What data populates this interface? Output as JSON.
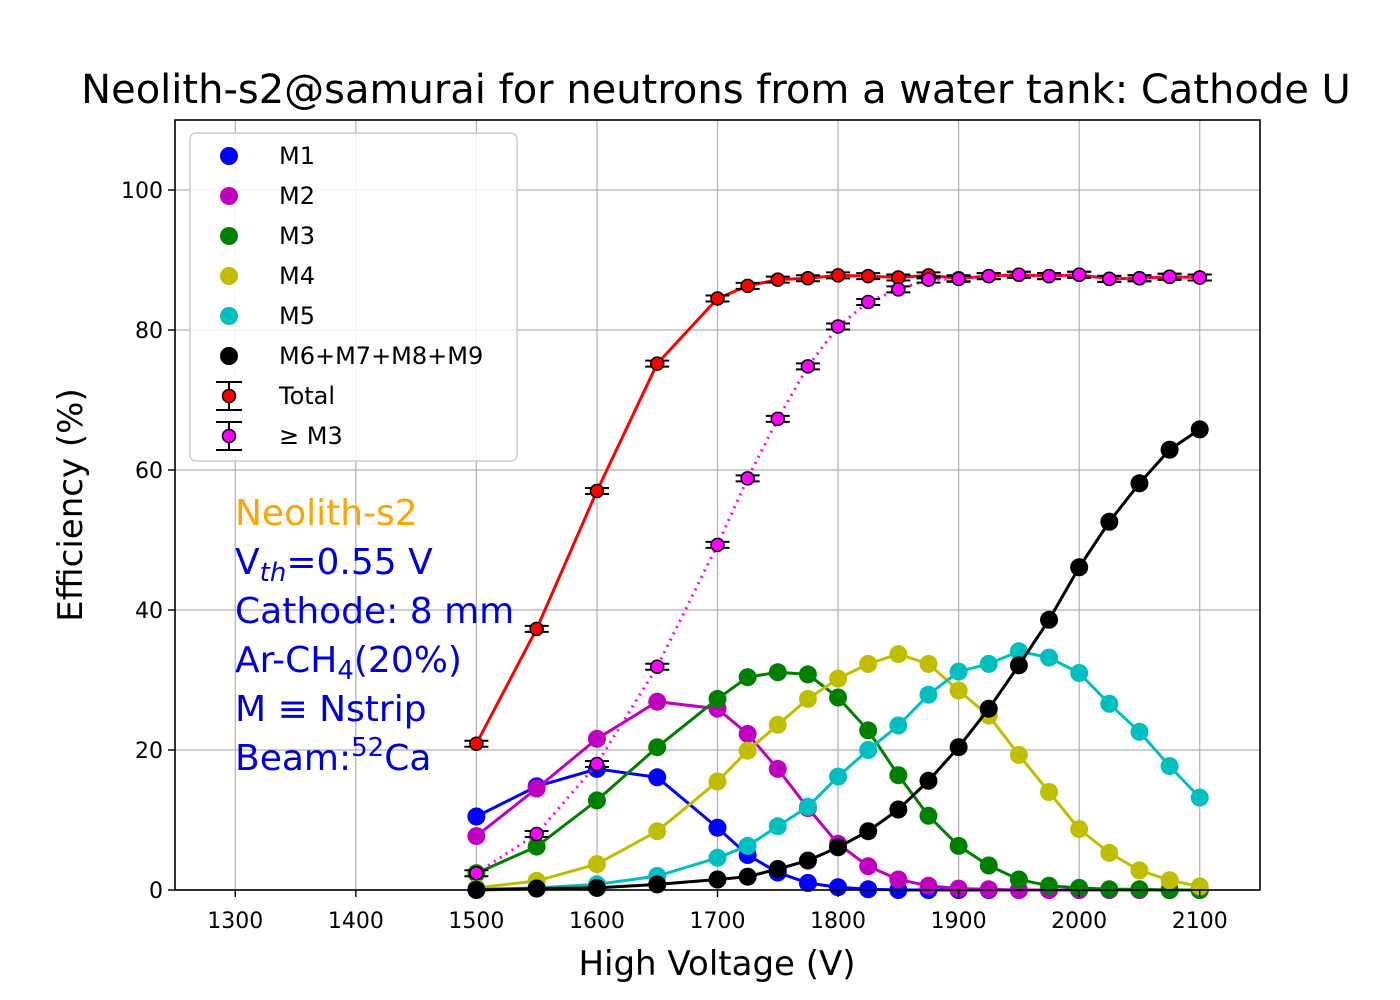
{
  "chart_data": {
    "type": "line",
    "title": "Neolith-s2@samurai for neutrons from a water tank: Cathode U",
    "xlabel": "High Voltage (V)",
    "ylabel": "Efficiency (%)",
    "xlim": [
      1250,
      2150
    ],
    "ylim": [
      0,
      110
    ],
    "xticks": [
      1300,
      1400,
      1500,
      1600,
      1700,
      1800,
      1900,
      2000,
      2100
    ],
    "yticks": [
      0,
      20,
      40,
      60,
      80,
      100
    ],
    "grid": true,
    "legend_position": "top-left",
    "x": [
      1500,
      1550,
      1600,
      1650,
      1700,
      1725,
      1750,
      1775,
      1800,
      1825,
      1850,
      1875,
      1900,
      1925,
      1950,
      1975,
      2000,
      2025,
      2050,
      2075,
      2100
    ],
    "series": [
      {
        "name": "M1",
        "color": "#0000ff",
        "line": "solid",
        "marker": "dot",
        "values": [
          10.5,
          14.8,
          17.3,
          16.1,
          8.9,
          5.0,
          2.5,
          1.0,
          0.4,
          0.1,
          0,
          0,
          0,
          0,
          0,
          0,
          0,
          0,
          0,
          0,
          0
        ]
      },
      {
        "name": "M2",
        "color": "#bf00bf",
        "line": "solid",
        "marker": "dot",
        "values": [
          7.7,
          14.5,
          21.6,
          26.9,
          25.9,
          22.3,
          17.3,
          11.7,
          6.6,
          3.4,
          1.5,
          0.6,
          0.2,
          0.1,
          0,
          0,
          0,
          0,
          0,
          0,
          0
        ]
      },
      {
        "name": "M3",
        "color": "#008000",
        "line": "solid",
        "marker": "dot",
        "values": [
          2.4,
          6.2,
          12.8,
          20.4,
          27.3,
          30.4,
          31.1,
          30.8,
          27.5,
          22.8,
          16.4,
          10.6,
          6.3,
          3.5,
          1.5,
          0.6,
          0.3,
          0.1,
          0.1,
          0,
          0
        ]
      },
      {
        "name": "M4",
        "color": "#bfbf00",
        "line": "solid",
        "marker": "dot",
        "values": [
          0.3,
          1.3,
          3.7,
          8.4,
          15.5,
          19.9,
          23.6,
          27.3,
          30.2,
          32.3,
          33.7,
          32.3,
          28.5,
          24.9,
          19.3,
          14.0,
          8.7,
          5.3,
          2.8,
          1.4,
          0.5
        ]
      },
      {
        "name": "M5",
        "color": "#00bfbf",
        "line": "solid",
        "marker": "dot",
        "values": [
          0.1,
          0.3,
          0.8,
          2.0,
          4.6,
          6.3,
          9.1,
          11.9,
          16.2,
          20.0,
          23.5,
          27.9,
          31.2,
          32.3,
          34.1,
          33.2,
          31.0,
          26.6,
          22.6,
          17.7,
          13.2
        ]
      },
      {
        "name": "M6+M7+M8+M9",
        "color": "#000000",
        "line": "solid",
        "marker": "dot",
        "values": [
          0,
          0.2,
          0.3,
          0.8,
          1.5,
          1.9,
          3.0,
          4.2,
          6.1,
          8.4,
          11.5,
          15.6,
          20.4,
          25.9,
          32.1,
          38.6,
          46.1,
          52.6,
          58.1,
          62.9,
          65.8
        ]
      },
      {
        "name": "Total",
        "color": "#ff0000",
        "line": "solid",
        "marker": "errorbar",
        "values": [
          20.9,
          37.3,
          57.0,
          75.2,
          84.5,
          86.3,
          87.2,
          87.4,
          87.8,
          87.7,
          87.5,
          87.8,
          87.4,
          87.7,
          87.9,
          87.7,
          87.9,
          87.3,
          87.4,
          87.6,
          87.5
        ]
      },
      {
        "name": " ≥ M3",
        "color": "#ff00ff",
        "line": "dotted",
        "marker": "errorbar",
        "values": [
          2.4,
          8.0,
          18.0,
          31.9,
          49.3,
          58.8,
          67.3,
          74.8,
          80.5,
          84.0,
          85.8,
          87.2,
          87.3,
          87.7,
          87.9,
          87.7,
          87.9,
          87.3,
          87.4,
          87.6,
          87.5
        ]
      }
    ],
    "annotations": {
      "detector": "Neolith-s2",
      "detector_color": "#ffa500",
      "text_color": "#0000dd",
      "vth_base": "V",
      "vth_sub": "th",
      "vth_value": "=0.55 V",
      "cathode": "Cathode: 8 mm",
      "gas_pre": "Ar-CH",
      "gas_sub": "4",
      "gas_post": "(20%)",
      "m_def": "M ≡ Nstrip",
      "beam_pre": "Beam:",
      "beam_sup": "52",
      "beam_post": "Ca"
    }
  }
}
